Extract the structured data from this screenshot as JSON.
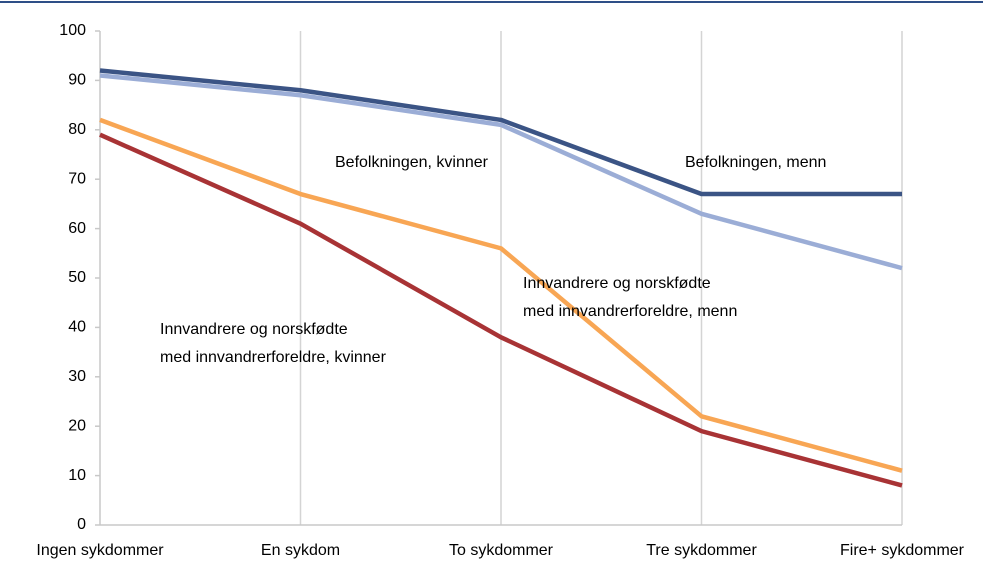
{
  "chart_data": {
    "type": "line",
    "categories": [
      "Ingen sykdommer",
      "En sykdom",
      "To sykdommer",
      "Tre sykdommer",
      "Fire+ sykdommer"
    ],
    "series": [
      {
        "name": "Befolkningen, menn",
        "color": "#3b5485",
        "values": [
          92,
          88,
          82,
          67,
          67
        ]
      },
      {
        "name": "Befolkningen, kvinner",
        "color": "#9badd6",
        "values": [
          91,
          87,
          81,
          63,
          52
        ]
      },
      {
        "name": "Innvandrere og norskfødte\nmed innvandrerforeldre, menn",
        "color": "#f8a654",
        "values": [
          82,
          67,
          56,
          22,
          11
        ]
      },
      {
        "name": "Innvandrere og norskfødte\nmed innvandrerforeldre, kvinner",
        "color": "#a83335",
        "values": [
          79,
          61,
          38,
          19,
          8
        ]
      }
    ],
    "ylim": [
      0,
      100
    ],
    "yticks": [
      0,
      10,
      20,
      30,
      40,
      50,
      60,
      70,
      80,
      90,
      100
    ],
    "grid": true
  }
}
